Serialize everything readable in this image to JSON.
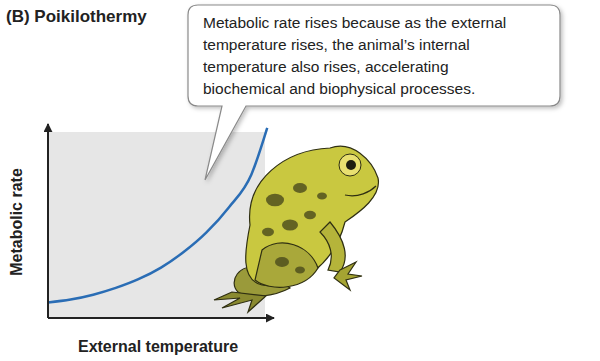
{
  "chart_data": {
    "type": "line",
    "title": "(B) Poikilothermy",
    "annotation": [
      "Metabolic rate rises because as the external",
      "temperature rises, the animal’s internal",
      "temperature also rises, accelerating",
      "biochemical and biophysical processes."
    ],
    "x_label": "External temperature",
    "y_label": "Metabolic rate",
    "x": [
      0,
      1,
      2,
      3,
      4,
      5,
      6,
      7,
      8,
      9,
      9.7
    ],
    "values": [
      0.8,
      0.95,
      1.2,
      1.55,
      2.0,
      2.6,
      3.4,
      4.4,
      5.7,
      7.4,
      9.8
    ],
    "color": "#2a6db5",
    "xlim": [
      0,
      10
    ],
    "ylim": [
      0,
      10
    ],
    "xticks": [],
    "yticks": [],
    "tick_labels": false,
    "grid": false
  }
}
